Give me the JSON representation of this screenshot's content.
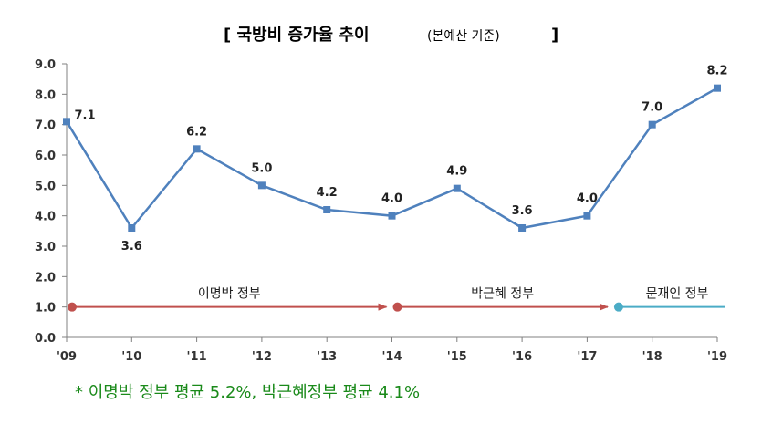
{
  "chart_data": {
    "type": "line",
    "title": "[ 국방비 증가율 추이",
    "subtitle": "(본예산 기준)",
    "title_close": "]",
    "categories": [
      "'09",
      "'10",
      "'11",
      "'12",
      "'13",
      "'14",
      "'15",
      "'16",
      "'17",
      "'18",
      "'19"
    ],
    "values": [
      7.1,
      3.6,
      6.2,
      5.0,
      4.2,
      4.0,
      4.9,
      3.6,
      4.0,
      7.0,
      8.2
    ],
    "value_labels": [
      "7.1",
      "3.6",
      "6.2",
      "5.0",
      "4.2",
      "4.0",
      "4.9",
      "3.6",
      "4.0",
      "7.0",
      "8.2"
    ],
    "y_ticks": [
      "0.0",
      "1.0",
      "2.0",
      "3.0",
      "4.0",
      "5.0",
      "6.0",
      "7.0",
      "8.0",
      "9.0"
    ],
    "ylim": [
      0,
      9
    ],
    "grid": false,
    "series_color": "#4f81bd",
    "governments": [
      {
        "name": "이명박 정부",
        "start": 0,
        "end": 5,
        "color": "#c0504d"
      },
      {
        "name": "박근혜 정부",
        "start": 5,
        "end": 8.4,
        "color": "#c0504d"
      },
      {
        "name": "문재인 정부",
        "start": 8.4,
        "end": 10,
        "color": "#4bacc6"
      }
    ],
    "gov_level": 1.0,
    "footnote": "* 이명박 정부 평균 5.2%, 박근혜정부 평균 4.1%"
  }
}
